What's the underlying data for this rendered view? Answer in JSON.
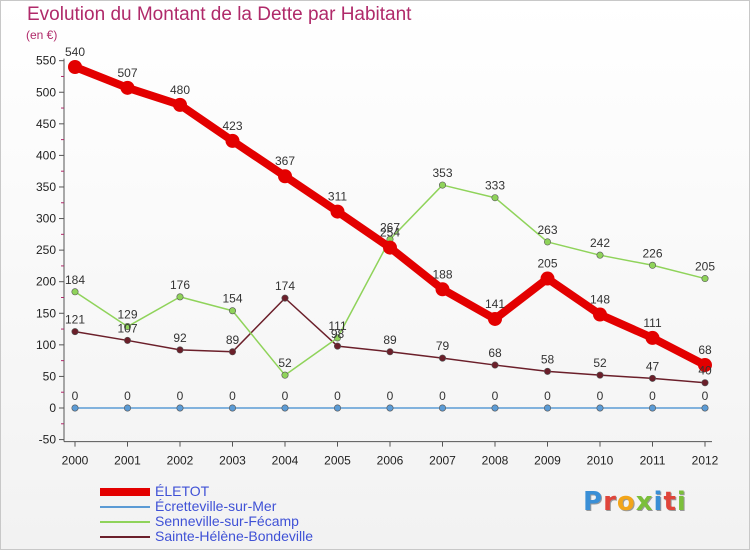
{
  "title": "Evolution du Montant de la Dette par Habitant",
  "unit": "(en €)",
  "logo": "Proxiti",
  "chart_data": {
    "type": "line",
    "x": [
      "2000",
      "2001",
      "2002",
      "2003",
      "2004",
      "2005",
      "2006",
      "2007",
      "2008",
      "2009",
      "2010",
      "2011",
      "2012"
    ],
    "ylim": [
      -50,
      550
    ],
    "yticks": [
      -50,
      0,
      50,
      100,
      150,
      200,
      250,
      300,
      350,
      400,
      450,
      500,
      550
    ],
    "grid": false,
    "legend_position": "bottom-left",
    "series": [
      {
        "name": "ÉLETOT",
        "color": "#e30000",
        "values": [
          540,
          507,
          480,
          423,
          367,
          311,
          254,
          188,
          141,
          205,
          148,
          111,
          68
        ]
      },
      {
        "name": "Écretteville-sur-Mer",
        "color": "#5b9bd5",
        "values": [
          0,
          0,
          0,
          0,
          0,
          0,
          0,
          0,
          0,
          0,
          0,
          0,
          0
        ]
      },
      {
        "name": "Senneville-sur-Fécamp",
        "color": "#8fd35a",
        "values": [
          184,
          129,
          176,
          154,
          52,
          111,
          267,
          353,
          333,
          263,
          242,
          226,
          205
        ]
      },
      {
        "name": "Sainte-Hélène-Bondeville",
        "color": "#6b1f2a",
        "values": [
          121,
          107,
          92,
          89,
          174,
          98,
          89,
          79,
          68,
          58,
          52,
          47,
          40
        ]
      }
    ]
  }
}
